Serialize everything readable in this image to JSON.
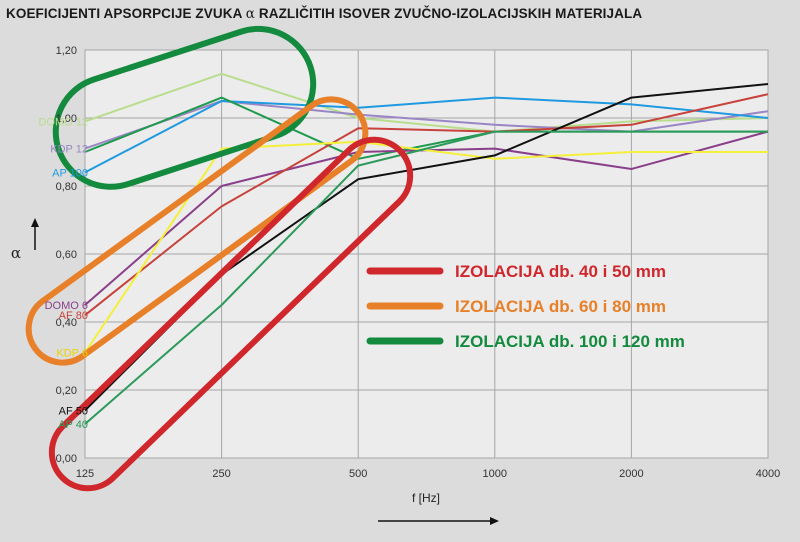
{
  "title_parts": [
    "KOEFICIJENTI APSORPCIJE ZVUKA",
    "α",
    "RAZLIČITIH ISOVER ZVUČNO-IZOLACIJSKIH MATERIJALA"
  ],
  "chart_data": {
    "type": "line",
    "xlabel": "f [Hz]",
    "ylabel": "α",
    "categories": [
      "125",
      "250",
      "500",
      "1000",
      "2000",
      "4000"
    ],
    "y_ticks": [
      "0,00",
      "0,20",
      "0,40",
      "0,60",
      "0,80",
      "1,00",
      "1,20"
    ],
    "ylim": [
      0,
      1.2
    ],
    "grid": true,
    "series": [
      {
        "name": "DOMO 12",
        "color": "#b8dd8c",
        "values": [
          0.99,
          1.13,
          1.0,
          0.96,
          0.99,
          1.0
        ]
      },
      {
        "name": "KDP 12",
        "color": "#9a86c4",
        "values": [
          0.91,
          1.05,
          1.01,
          0.98,
          0.96,
          1.02
        ]
      },
      {
        "name": "AP 100",
        "color": "#1f9ae0",
        "values": [
          0.84,
          1.05,
          1.03,
          1.06,
          1.04,
          1.0
        ]
      },
      {
        "name": "",
        "color": "#1e9a4e",
        "values": [
          0.9,
          1.06,
          0.88,
          0.96,
          0.96,
          0.96
        ]
      },
      {
        "name": "DOMO 6",
        "color": "#8a3f8a",
        "values": [
          0.45,
          0.8,
          0.9,
          0.91,
          0.85,
          0.96
        ]
      },
      {
        "name": "AF 80",
        "color": "#c8423c",
        "values": [
          0.42,
          0.74,
          0.97,
          0.96,
          0.98,
          1.07
        ]
      },
      {
        "name": "KDP 6",
        "color": "#f4ef3a",
        "values": [
          0.31,
          0.91,
          0.93,
          0.88,
          0.9,
          0.9
        ]
      },
      {
        "name": "AF 50",
        "color": "#111111",
        "values": [
          0.14,
          0.54,
          0.82,
          0.89,
          1.06,
          1.1
        ]
      },
      {
        "name": "AP 40",
        "color": "#2c9a5a",
        "values": [
          0.1,
          0.45,
          0.86,
          0.96,
          0.96,
          0.96
        ]
      }
    ],
    "legend": [
      {
        "label": "IZOLACIJA db. 40 i 50 mm",
        "color": "#d0272c"
      },
      {
        "label": "IZOLACIJA db. 60 i 80 mm",
        "color": "#e8802a"
      },
      {
        "label": "IZOLACIJA db. 100 i 120 mm",
        "color": "#138a3e"
      }
    ],
    "legend_position": "right"
  }
}
